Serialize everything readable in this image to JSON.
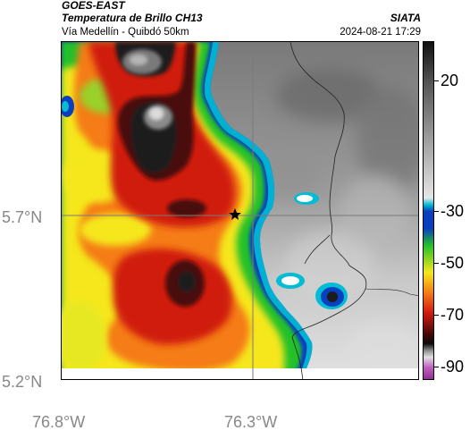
{
  "header": {
    "title_line1": "GOES-EAST",
    "title_line2": "Temperatura de Brillo CH13",
    "subtitle": "Vía Medellín - Quibdó 50km",
    "organization": "SIATA",
    "timestamp": "2024-08-21 17:29"
  },
  "map": {
    "lat_labels": [
      "5.7°N",
      "5.2°N"
    ],
    "lon_labels": [
      "76.8°W",
      "76.3°W"
    ],
    "marker": "star-marker"
  },
  "colorbar": {
    "labels": [
      "20",
      "-30",
      "-50",
      "-70",
      "-90"
    ],
    "values": [
      20,
      -30,
      -50,
      -70,
      -90
    ],
    "range": [
      -95,
      35
    ],
    "colors": {
      "warm_gray": "#6e6e6e",
      "cyan": "#00bcd4",
      "blue": "#0a3fbf",
      "green": "#22c02a",
      "yellow": "#f5e71c",
      "orange": "#f57c16",
      "red": "#d01a10",
      "dark_red": "#4a0a08",
      "black": "#0a0a0a",
      "magenta": "#a030a0"
    }
  }
}
